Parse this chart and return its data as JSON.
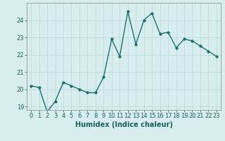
{
  "title": "",
  "xlabel": "Humidex (Indice chaleur)",
  "ylabel": "",
  "x": [
    0,
    1,
    2,
    3,
    4,
    5,
    6,
    7,
    8,
    9,
    10,
    11,
    12,
    13,
    14,
    15,
    16,
    17,
    18,
    19,
    20,
    21,
    22,
    23
  ],
  "y": [
    20.2,
    20.1,
    18.7,
    19.3,
    20.4,
    20.2,
    20.0,
    19.8,
    19.8,
    20.7,
    22.9,
    21.9,
    24.5,
    22.6,
    24.0,
    24.4,
    23.2,
    23.3,
    22.4,
    22.9,
    22.8,
    22.5,
    22.2,
    21.9
  ],
  "line_color": "#1a7070",
  "bg_color": "#d8eeee",
  "grid_color": "#b8d8d8",
  "tick_color": "#1a6060",
  "spine_color": "#888888",
  "ylim": [
    18.8,
    25.0
  ],
  "xlim": [
    -0.5,
    23.5
  ],
  "yticks": [
    19,
    20,
    21,
    22,
    23,
    24
  ],
  "xticks": [
    0,
    1,
    2,
    3,
    4,
    5,
    6,
    7,
    8,
    9,
    10,
    11,
    12,
    13,
    14,
    15,
    16,
    17,
    18,
    19,
    20,
    21,
    22,
    23
  ],
  "markersize": 2.5,
  "linewidth": 1.0,
  "xlabel_fontsize": 7,
  "tick_fontsize": 6
}
